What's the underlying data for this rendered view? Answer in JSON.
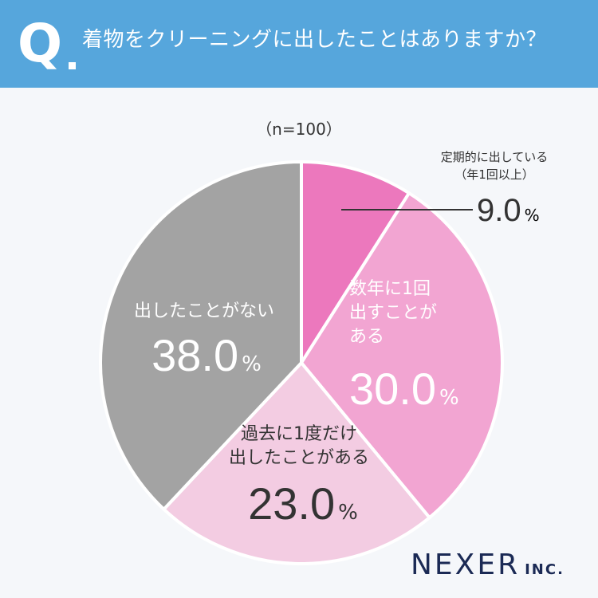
{
  "header": {
    "q_mark": "Q",
    "question": "着物をクリーニングに出したことはありますか？"
  },
  "sample_size": "（n=100）",
  "chart_data": {
    "type": "pie",
    "title": "着物をクリーニングに出したことはありますか？",
    "unit": "%",
    "slices": [
      {
        "label": "定期的に出している（年1回以上）",
        "value": 9.0,
        "color": "#ec78bd"
      },
      {
        "label": "数年に1回出すことがある",
        "value": 30.0,
        "color": "#f2a5d2"
      },
      {
        "label": "過去に1度だけ出したことがある",
        "value": 23.0,
        "color": "#f3cce2"
      },
      {
        "label": "出したことがない",
        "value": 38.0,
        "color": "#a3a3a3"
      }
    ]
  },
  "labels": {
    "s0_line1": "定期的に出している",
    "s0_line2": "（年1回以上）",
    "s0_value": "9.0",
    "s1_line1": "数年に1回",
    "s1_line2": "出すことが",
    "s1_line3": "ある",
    "s1_value": "30.0",
    "s2_line1": "過去に1度だけ",
    "s2_line2": "出したことがある",
    "s2_value": "23.0",
    "s3_line1": "出したことがない",
    "s3_value": "38.0",
    "percent": "%"
  },
  "brand": {
    "main": "NEXER",
    "sub": "INC."
  }
}
